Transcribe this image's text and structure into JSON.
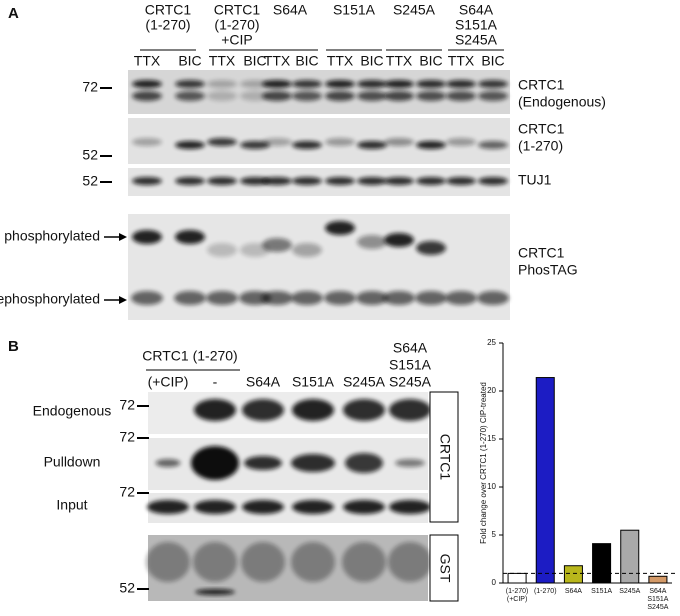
{
  "panel_a": {
    "label": "A",
    "column_headers": [
      [
        "CRTC1",
        "(1-270)"
      ],
      [
        "CRTC1",
        "(1-270)",
        "+CIP"
      ],
      [
        "S64A"
      ],
      [
        "S151A"
      ],
      [
        "S245A"
      ],
      [
        "S64A",
        "S151A",
        "S245A"
      ]
    ],
    "lane_labels": [
      "TTX",
      "BIC",
      "TTX",
      "BIC",
      "TTX",
      "BIC",
      "TTX",
      "BIC",
      "TTX",
      "BIC",
      "TTX",
      "BIC"
    ],
    "markers": [
      "72",
      "52",
      "52"
    ],
    "blot_labels": [
      [
        "CRTC1",
        "(Endogenous)"
      ],
      [
        "CRTC1",
        "(1-270)"
      ],
      [
        "TUJ1"
      ],
      [
        "CRTC1",
        "PhosTAG"
      ]
    ],
    "arrow_labels": [
      "phosphorylated",
      "dephosphorylated"
    ]
  },
  "panel_b": {
    "label": "B",
    "group_label": "CRTC1 (1-270)",
    "lane_labels": [
      [
        "(+CIP)"
      ],
      [
        "-"
      ],
      [
        "S64A"
      ],
      [
        "S151A"
      ],
      [
        "S245A"
      ],
      [
        "S64A",
        "S151A",
        "S245A"
      ]
    ],
    "row_labels": [
      "Endogenous",
      "Pulldown",
      "Input"
    ],
    "markers": [
      "72",
      "72",
      "72",
      "52"
    ],
    "box_labels": [
      "CRTC1",
      "GST"
    ]
  },
  "chart_data": {
    "type": "bar",
    "y_label": "Fold change over CRTC1 (1-270) CIP-treated",
    "categories": [
      [
        "(1-270)",
        "(+CIP)"
      ],
      [
        "(1-270)"
      ],
      [
        "S64A"
      ],
      [
        "S151A"
      ],
      [
        "S245A"
      ],
      [
        "S64A",
        "S151A",
        "S245A"
      ]
    ],
    "values": [
      1,
      21.4,
      1.8,
      4.1,
      5.5,
      0.7
    ],
    "colors": [
      "#ffffff",
      "#1c1cc4",
      "#b9b71c",
      "#000000",
      "#a9a9a9",
      "#d49a68"
    ],
    "ylim": [
      0,
      25
    ],
    "yticks": [
      0,
      5,
      10,
      15,
      20,
      25
    ],
    "reference_line": 1
  }
}
